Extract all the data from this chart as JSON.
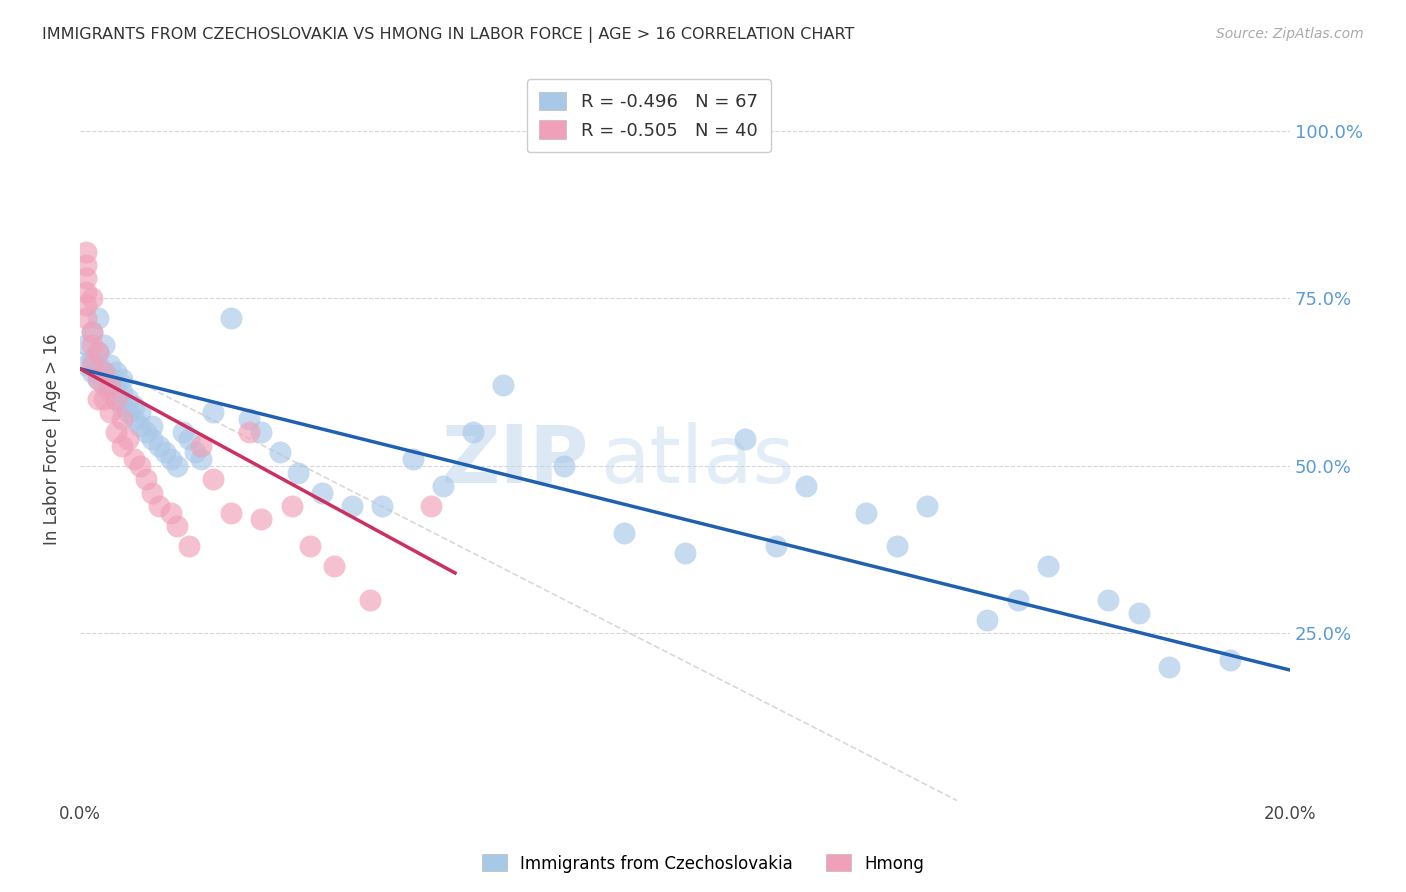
{
  "title": "IMMIGRANTS FROM CZECHOSLOVAKIA VS HMONG IN LABOR FORCE | AGE > 16 CORRELATION CHART",
  "source": "Source: ZipAtlas.com",
  "ylabel": "In Labor Force | Age > 16",
  "right_ytick_labels": [
    "100.0%",
    "75.0%",
    "50.0%",
    "25.0%"
  ],
  "right_ytick_values": [
    1.0,
    0.75,
    0.5,
    0.25
  ],
  "xlim": [
    0.0,
    0.2
  ],
  "ylim": [
    0.0,
    1.08
  ],
  "xtick_values": [
    0.0,
    0.04,
    0.08,
    0.12,
    0.16,
    0.2
  ],
  "xtick_labels": [
    "0.0%",
    "",
    "",
    "",
    "",
    "20.0%"
  ],
  "legend_line1": "R = -0.496   N = 67",
  "legend_line2": "R = -0.505   N = 40",
  "bottom_legend": [
    {
      "label": "Immigrants from Czechoslovakia",
      "color": "#a8c8e8"
    },
    {
      "label": "Hmong",
      "color": "#f0a0b8"
    }
  ],
  "czech_scatter_x": [
    0.001,
    0.001,
    0.002,
    0.002,
    0.002,
    0.003,
    0.003,
    0.003,
    0.003,
    0.004,
    0.004,
    0.004,
    0.005,
    0.005,
    0.005,
    0.006,
    0.006,
    0.006,
    0.007,
    0.007,
    0.007,
    0.008,
    0.008,
    0.009,
    0.009,
    0.01,
    0.01,
    0.011,
    0.012,
    0.012,
    0.013,
    0.014,
    0.015,
    0.016,
    0.017,
    0.018,
    0.019,
    0.02,
    0.022,
    0.025,
    0.028,
    0.03,
    0.033,
    0.036,
    0.04,
    0.045,
    0.05,
    0.055,
    0.06,
    0.065,
    0.07,
    0.08,
    0.09,
    0.1,
    0.11,
    0.12,
    0.13,
    0.14,
    0.15,
    0.16,
    0.17,
    0.18,
    0.19,
    0.115,
    0.135,
    0.155,
    0.175
  ],
  "czech_scatter_y": [
    0.65,
    0.68,
    0.64,
    0.66,
    0.7,
    0.63,
    0.65,
    0.67,
    0.72,
    0.62,
    0.64,
    0.68,
    0.61,
    0.63,
    0.65,
    0.6,
    0.62,
    0.64,
    0.59,
    0.61,
    0.63,
    0.58,
    0.6,
    0.57,
    0.59,
    0.56,
    0.58,
    0.55,
    0.54,
    0.56,
    0.53,
    0.52,
    0.51,
    0.5,
    0.55,
    0.54,
    0.52,
    0.51,
    0.58,
    0.72,
    0.57,
    0.55,
    0.52,
    0.49,
    0.46,
    0.44,
    0.44,
    0.51,
    0.47,
    0.55,
    0.62,
    0.5,
    0.4,
    0.37,
    0.54,
    0.47,
    0.43,
    0.44,
    0.27,
    0.35,
    0.3,
    0.2,
    0.21,
    0.38,
    0.38,
    0.3,
    0.28
  ],
  "hmong_scatter_x": [
    0.001,
    0.001,
    0.001,
    0.001,
    0.001,
    0.001,
    0.002,
    0.002,
    0.002,
    0.002,
    0.003,
    0.003,
    0.003,
    0.004,
    0.004,
    0.005,
    0.005,
    0.006,
    0.006,
    0.007,
    0.007,
    0.008,
    0.009,
    0.01,
    0.011,
    0.012,
    0.013,
    0.015,
    0.016,
    0.018,
    0.02,
    0.022,
    0.025,
    0.028,
    0.03,
    0.035,
    0.038,
    0.042,
    0.048,
    0.058
  ],
  "hmong_scatter_y": [
    0.82,
    0.8,
    0.78,
    0.76,
    0.74,
    0.72,
    0.75,
    0.7,
    0.68,
    0.65,
    0.67,
    0.63,
    0.6,
    0.64,
    0.6,
    0.62,
    0.58,
    0.6,
    0.55,
    0.57,
    0.53,
    0.54,
    0.51,
    0.5,
    0.48,
    0.46,
    0.44,
    0.43,
    0.41,
    0.38,
    0.53,
    0.48,
    0.43,
    0.55,
    0.42,
    0.44,
    0.38,
    0.35,
    0.3,
    0.44
  ],
  "czech_trendline": {
    "x": [
      0.0,
      0.2
    ],
    "y": [
      0.645,
      0.195
    ]
  },
  "hmong_trendline": {
    "x": [
      0.0,
      0.062
    ],
    "y": [
      0.645,
      0.34
    ]
  },
  "gray_ref_line": {
    "x": [
      0.0,
      0.145
    ],
    "y": [
      0.67,
      0.0
    ]
  },
  "watermark_parts": [
    "ZIP",
    "atlas"
  ],
  "background_color": "#ffffff",
  "grid_color": "#cccccc",
  "title_color": "#333333",
  "right_axis_color": "#5b9bd5",
  "scatter_blue": "#a8c8e8",
  "scatter_blue_edge": "#a8c8e8",
  "scatter_pink": "#f0a0b8",
  "scatter_pink_edge": "#f0a0b8",
  "trendline_blue": "#2060b0",
  "trendline_pink": "#cc3060",
  "trendline_gray": "#c8c8c8",
  "watermark_zip_color": "#c8dff0",
  "watermark_atlas_color": "#c8dff0"
}
